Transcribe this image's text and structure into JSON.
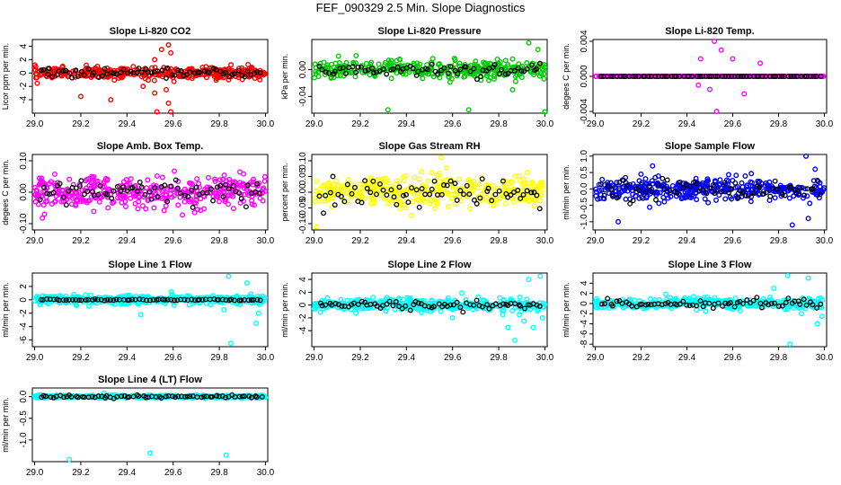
{
  "figure_title": "FEF_090329  2.5 Min. Slope Diagnostics",
  "chart_data": [
    {
      "type": "scatter",
      "title": "Slope Li-820 CO2",
      "ylabel": "Licor ppm per min.",
      "color": "#ff0000",
      "xlim": [
        28.99,
        30.01
      ],
      "ylim": [
        -6,
        5
      ],
      "yticks": [
        -4,
        -2,
        0,
        2,
        4
      ],
      "ytick_labels": [
        "-4",
        "-2",
        "0",
        "2",
        "4"
      ],
      "xticks": [
        29.0,
        29.2,
        29.4,
        29.6,
        29.8,
        30.0
      ],
      "xtick_labels": [
        "29.0",
        "29.2",
        "29.4",
        "29.6",
        "29.8",
        "30.0"
      ],
      "spread": 0.8,
      "outliers": [
        [
          29.55,
          3.5
        ],
        [
          29.58,
          4.2
        ],
        [
          29.59,
          3.0
        ],
        [
          29.57,
          -2.5
        ],
        [
          29.58,
          -4.5
        ],
        [
          29.59,
          -5.8
        ],
        [
          29.53,
          -5.8
        ],
        [
          29.47,
          -2.0
        ],
        [
          29.52,
          2.0
        ],
        [
          29.2,
          -3.5
        ],
        [
          29.33,
          -4.0
        ],
        [
          29.52,
          -3.0
        ]
      ],
      "black_spread": 0.6
    },
    {
      "type": "scatter",
      "title": "Slope Li-820 Pressure",
      "ylabel": "kPa per min.",
      "color": "#00cc00",
      "xlim": [
        28.99,
        30.01
      ],
      "ylim": [
        -0.065,
        0.045
      ],
      "yticks": [
        -0.04,
        0.0
      ],
      "ytick_labels": [
        "-0.04",
        "0.00"
      ],
      "xticks": [
        29.0,
        29.2,
        29.4,
        29.6,
        29.8,
        30.0
      ],
      "xtick_labels": [
        "29.0",
        "29.2",
        "29.4",
        "29.6",
        "29.8",
        "30.0"
      ],
      "spread": 0.012,
      "outliers": [
        [
          29.93,
          0.04
        ],
        [
          29.32,
          -0.06
        ],
        [
          29.67,
          -0.06
        ],
        [
          30.0,
          -0.063
        ],
        [
          29.97,
          0.03
        ],
        [
          29.86,
          -0.03
        ]
      ],
      "black_spread": 0.01
    },
    {
      "type": "scatter",
      "title": "Slope Li-820 Temp.",
      "ylabel": "degees C per min.",
      "color": "#ff00ff",
      "xlim": [
        28.99,
        30.01
      ],
      "ylim": [
        -0.0042,
        0.0042
      ],
      "yticks": [
        -0.004,
        0.0,
        0.004
      ],
      "ytick_labels": [
        "-0.004",
        "0.000",
        "0.004"
      ],
      "xticks": [
        29.0,
        29.2,
        29.4,
        29.6,
        29.8,
        30.0
      ],
      "xtick_labels": [
        "29.0",
        "29.2",
        "29.4",
        "29.6",
        "29.8",
        "30.0"
      ],
      "spread": 0.0,
      "outliers": [
        [
          29.52,
          0.004
        ],
        [
          29.53,
          -0.004
        ],
        [
          29.46,
          0.002
        ],
        [
          29.6,
          0.002
        ],
        [
          29.65,
          -0.002
        ],
        [
          29.5,
          -0.0015
        ],
        [
          29.72,
          0.0015
        ],
        [
          29.55,
          0.003
        ],
        [
          29.45,
          -0.001
        ]
      ],
      "black_spread": 0.0
    },
    {
      "type": "scatter",
      "title": "Slope Amb. Box Temp.",
      "ylabel": "degees C per min.",
      "color": "#ff00ff",
      "xlim": [
        28.99,
        30.01
      ],
      "ylim": [
        -0.12,
        0.12
      ],
      "yticks": [
        -0.1,
        0.0,
        0.1
      ],
      "ytick_labels": [
        "-0.10",
        "0.00",
        "0.10"
      ],
      "xticks": [
        29.0,
        29.2,
        29.4,
        29.6,
        29.8,
        30.0
      ],
      "xtick_labels": [
        "29.0",
        "29.2",
        "29.4",
        "29.6",
        "29.8",
        "30.0"
      ],
      "spread": 0.045,
      "outliers": [],
      "black_spread": 0.04
    },
    {
      "type": "scatter",
      "title": "Slope Gas Stream RH",
      "ylabel": "percent per min.",
      "color": "#ffff00",
      "xlim": [
        28.99,
        30.01
      ],
      "ylim": [
        -0.12,
        0.12
      ],
      "yticks": [
        -0.1,
        -0.05,
        0.0,
        0.05,
        0.1
      ],
      "ytick_labels": [
        "-0.10",
        "-0.05",
        "0.00",
        "0.05",
        "0.10"
      ],
      "xticks": [
        29.0,
        29.2,
        29.4,
        29.6,
        29.8,
        30.0
      ],
      "xtick_labels": [
        "29.0",
        "29.2",
        "29.4",
        "29.6",
        "29.8",
        "30.0"
      ],
      "spread": 0.045,
      "outliers": [
        [
          29.01,
          -0.11
        ],
        [
          29.55,
          0.11
        ]
      ],
      "black_spread": 0.04
    },
    {
      "type": "scatter",
      "title": "Slope Sample Flow",
      "ylabel": "ml/min per min.",
      "color": "#0000ff",
      "xlim": [
        28.99,
        30.01
      ],
      "ylim": [
        -1.25,
        1.05
      ],
      "yticks": [
        -1.0,
        -0.5,
        0.0,
        0.5,
        1.0
      ],
      "ytick_labels": [
        "-1.0",
        "-0.5",
        "0.0",
        "0.5",
        "1.0"
      ],
      "xticks": [
        29.0,
        29.2,
        29.4,
        29.6,
        29.8,
        30.0
      ],
      "xtick_labels": [
        "29.0",
        "29.2",
        "29.4",
        "29.6",
        "29.8",
        "30.0"
      ],
      "spread": 0.3,
      "outliers": [
        [
          29.92,
          1.0
        ],
        [
          29.96,
          0.6
        ],
        [
          29.1,
          -1.0
        ],
        [
          29.86,
          -1.1
        ],
        [
          29.93,
          -0.9
        ],
        [
          29.25,
          0.7
        ]
      ],
      "black_spread": 0.3
    },
    {
      "type": "scatter",
      "title": "Slope Line 1 Flow",
      "ylabel": "ml/min per min.",
      "color": "#00ffff",
      "xlim": [
        28.99,
        30.01
      ],
      "ylim": [
        -7,
        4
      ],
      "yticks": [
        -6,
        -4,
        -2,
        0,
        2
      ],
      "ytick_labels": [
        "-6",
        "-4",
        "-2",
        "0",
        "2"
      ],
      "xticks": [
        29.0,
        29.2,
        29.4,
        29.6,
        29.8,
        30.0
      ],
      "xtick_labels": [
        "29.0",
        "29.2",
        "29.4",
        "29.6",
        "29.8",
        "30.0"
      ],
      "spread": 0.6,
      "outliers": [
        [
          29.84,
          3.5
        ],
        [
          29.85,
          -6.5
        ],
        [
          29.96,
          -3.5
        ],
        [
          29.92,
          2.5
        ],
        [
          29.97,
          -2.0
        ],
        [
          29.46,
          -2.2
        ],
        [
          29.82,
          -1.5
        ]
      ],
      "black_spread": 0.1
    },
    {
      "type": "scatter",
      "title": "Slope Line 2 Flow",
      "ylabel": "ml/min per min.",
      "color": "#00ffff",
      "xlim": [
        28.99,
        30.01
      ],
      "ylim": [
        -6.5,
        5
      ],
      "yticks": [
        -4,
        -2,
        0,
        2,
        4
      ],
      "ytick_labels": [
        "-4",
        "-2",
        "0",
        "2",
        "4"
      ],
      "xticks": [
        29.0,
        29.2,
        29.4,
        29.6,
        29.8,
        30.0
      ],
      "xtick_labels": [
        "29.0",
        "29.2",
        "29.4",
        "29.6",
        "29.8",
        "30.0"
      ],
      "spread": 0.9,
      "outliers": [
        [
          29.98,
          4.5
        ],
        [
          29.93,
          4.0
        ],
        [
          29.95,
          -3.5
        ],
        [
          29.84,
          -3.5
        ],
        [
          29.87,
          -5.5
        ],
        [
          29.99,
          -2.0
        ],
        [
          29.91,
          -2.5
        ],
        [
          29.6,
          -2.0
        ]
      ],
      "black_spread": 0.7
    },
    {
      "type": "scatter",
      "title": "Slope Line 3 Flow",
      "ylabel": "ml/min per min.",
      "color": "#00ffff",
      "xlim": [
        28.99,
        30.01
      ],
      "ylim": [
        -8.5,
        6
      ],
      "yticks": [
        -8,
        -6,
        -4,
        -2,
        0,
        2,
        4
      ],
      "ytick_labels": [
        "-8",
        "-6",
        "-4",
        "-2",
        "0",
        "2",
        "4"
      ],
      "xticks": [
        29.0,
        29.2,
        29.4,
        29.6,
        29.8,
        30.0
      ],
      "xtick_labels": [
        "29.0",
        "29.2",
        "29.4",
        "29.6",
        "29.8",
        "30.0"
      ],
      "spread": 1.0,
      "outliers": [
        [
          29.84,
          5.5
        ],
        [
          29.93,
          5.0
        ],
        [
          29.85,
          -8.0
        ],
        [
          29.97,
          -4.0
        ],
        [
          29.99,
          -2.5
        ],
        [
          29.9,
          -2.0
        ],
        [
          29.78,
          3.0
        ]
      ],
      "black_spread": 0.8
    },
    {
      "type": "scatter",
      "title": "Slope Line 4 (LT) Flow",
      "ylabel": "ml/min per min.",
      "color": "#00ffff",
      "xlim": [
        28.99,
        30.01
      ],
      "ylim": [
        -1.5,
        0.2
      ],
      "yticks": [
        -1.0,
        -0.5,
        0.0
      ],
      "ytick_labels": [
        "-1.0",
        "-0.5",
        "0.0"
      ],
      "xticks": [
        29.0,
        29.2,
        29.4,
        29.6,
        29.8,
        30.0
      ],
      "xtick_labels": [
        "29.0",
        "29.2",
        "29.4",
        "29.6",
        "29.8",
        "30.0"
      ],
      "spread": 0.03,
      "outliers": [
        [
          29.15,
          -1.45
        ],
        [
          29.5,
          -1.3
        ],
        [
          29.83,
          -1.35
        ],
        [
          29.3,
          0.08
        ]
      ],
      "black_spread": 0.03
    }
  ]
}
